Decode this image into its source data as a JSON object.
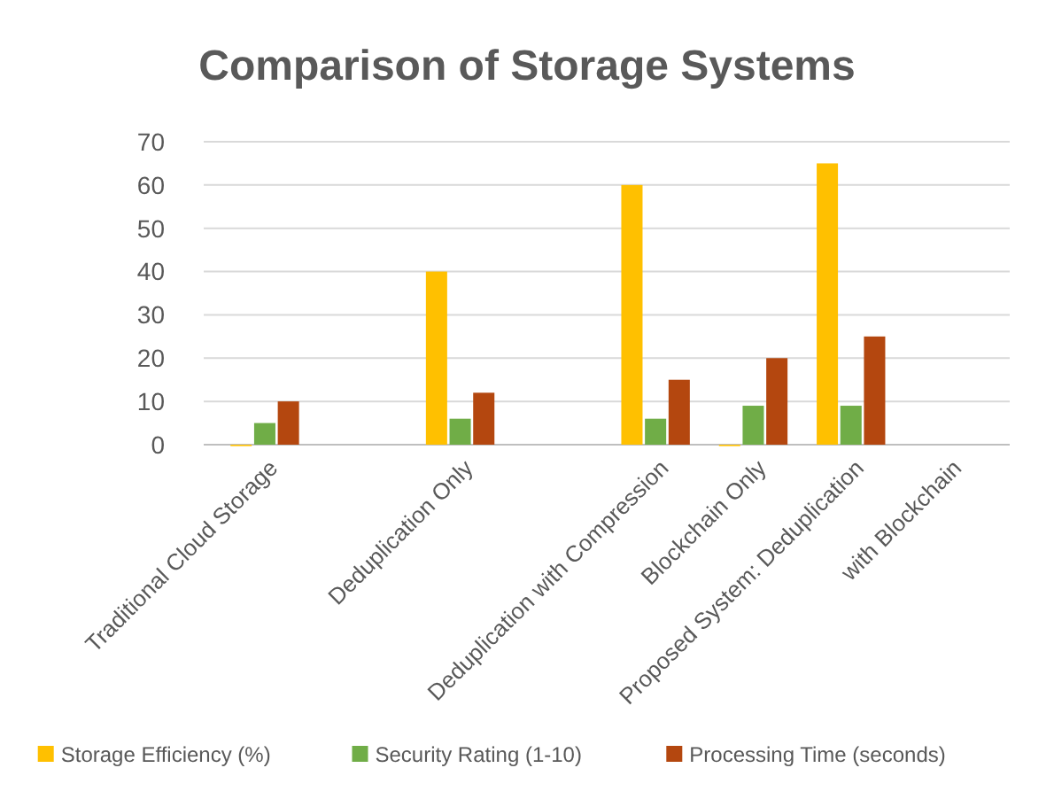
{
  "chart_data": {
    "type": "bar",
    "title": "Comparison of Storage Systems",
    "categories": [
      "Traditional Cloud Storage",
      null,
      "Deduplication Only",
      null,
      "Deduplication with Compression",
      "Blockchain Only",
      "Proposed System: Deduplication",
      "with Blockchain"
    ],
    "series": [
      {
        "name": "Storage Efficiency (%)",
        "color": "#ffc000",
        "values": [
          0,
          null,
          40,
          null,
          60,
          0,
          65,
          null
        ]
      },
      {
        "name": "Security Rating (1-10)",
        "color": "#70ad47",
        "values": [
          5,
          null,
          6,
          null,
          6,
          9,
          9,
          null
        ]
      },
      {
        "name": "Processing Time (seconds)",
        "color": "#b4470f",
        "values": [
          10,
          null,
          12,
          null,
          15,
          20,
          25,
          null
        ]
      }
    ],
    "ylim": [
      0,
      70
    ],
    "yticks": [
      0,
      10,
      20,
      30,
      40,
      50,
      60,
      70
    ],
    "grid": "y",
    "legend": "bottom"
  }
}
